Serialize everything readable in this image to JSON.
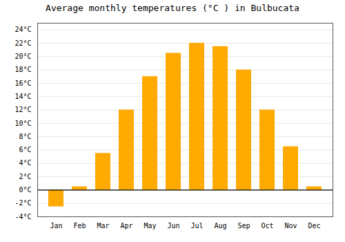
{
  "chart_data": {
    "type": "bar",
    "title": "Average monthly temperatures (°C ) in Bulbucata",
    "categories": [
      "Jan",
      "Feb",
      "Mar",
      "Apr",
      "May",
      "Jun",
      "Jul",
      "Aug",
      "Sep",
      "Oct",
      "Nov",
      "Dec"
    ],
    "values": [
      -2.5,
      0.5,
      5.5,
      12.0,
      17.0,
      20.5,
      22.0,
      21.5,
      18.0,
      12.0,
      6.5,
      0.5
    ],
    "color": "#FFAA00",
    "ylim": [
      -4,
      25
    ],
    "yticks": [
      {
        "value": -4,
        "label": "-4°C"
      },
      {
        "value": -2,
        "label": "-2°C"
      },
      {
        "value": 0,
        "label": "0°C"
      },
      {
        "value": 2,
        "label": "2°C"
      },
      {
        "value": 4,
        "label": "4°C"
      },
      {
        "value": 6,
        "label": "6°C"
      },
      {
        "value": 8,
        "label": "8°C"
      },
      {
        "value": 10,
        "label": "10°C"
      },
      {
        "value": 12,
        "label": "12°C"
      },
      {
        "value": 14,
        "label": "14°C"
      },
      {
        "value": 16,
        "label": "16°C"
      },
      {
        "value": 18,
        "label": "18°C"
      },
      {
        "value": 20,
        "label": "20°C"
      },
      {
        "value": 22,
        "label": "22°C"
      },
      {
        "value": 24,
        "label": "24°C"
      }
    ],
    "grid": true
  }
}
